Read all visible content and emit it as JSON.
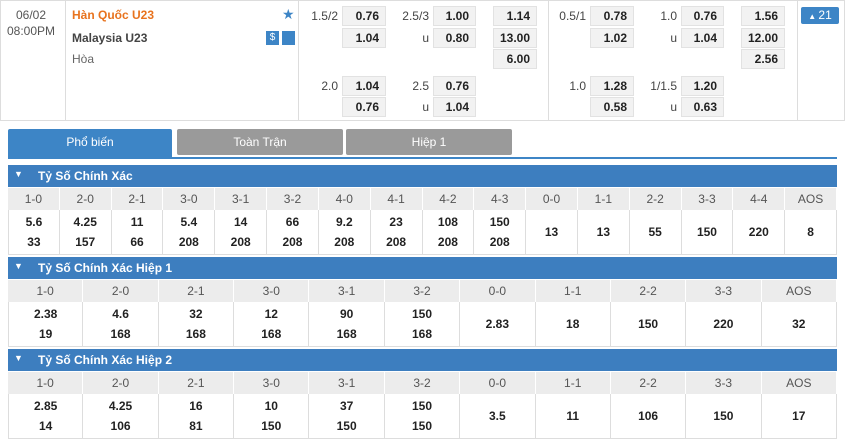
{
  "match": {
    "date": "06/02",
    "time": "08:00PM",
    "home": "Hàn Quốc U23",
    "away": "Malaysia U23",
    "draw": "Hòa",
    "more": "21",
    "blocks": [
      [
        [
          "1.5/2",
          "0.76",
          "2.5/3",
          "1.00",
          "1.14"
        ],
        [
          null,
          "1.04",
          "u",
          "0.80",
          "13.00"
        ],
        [
          null,
          null,
          null,
          null,
          "6.00"
        ],
        [
          "2.0",
          "1.04",
          "2.5",
          "0.76",
          null
        ],
        [
          null,
          "0.76",
          "u",
          "1.04",
          null
        ]
      ],
      [
        [
          "0.5/1",
          "0.78",
          "1.0",
          "0.76",
          "1.56"
        ],
        [
          null,
          "1.02",
          "u",
          "1.04",
          "12.00"
        ],
        [
          null,
          null,
          null,
          null,
          "2.56"
        ],
        [
          "1.0",
          "1.28",
          "1/1.5",
          "1.20",
          null
        ],
        [
          null,
          "0.58",
          "u",
          "0.63",
          null
        ]
      ]
    ]
  },
  "tabs": [
    "Phổ biến",
    "Toàn Trận",
    "Hiệp 1"
  ],
  "sections": [
    {
      "title": "Tỷ Số Chính Xác",
      "scores": [
        "1-0",
        "2-0",
        "2-1",
        "3-0",
        "3-1",
        "3-2",
        "4-0",
        "4-1",
        "4-2",
        "4-3",
        "0-0",
        "1-1",
        "2-2",
        "3-3",
        "4-4",
        "AOS"
      ],
      "odds": [
        [
          "5.6",
          "33"
        ],
        [
          "4.25",
          "157"
        ],
        [
          "11",
          "66"
        ],
        [
          "5.4",
          "208"
        ],
        [
          "14",
          "208"
        ],
        [
          "66",
          "208"
        ],
        [
          "9.2",
          "208"
        ],
        [
          "23",
          "208"
        ],
        [
          "108",
          "208"
        ],
        [
          "150",
          "208"
        ],
        [
          "13"
        ],
        [
          "13"
        ],
        [
          "55"
        ],
        [
          "150"
        ],
        [
          "220"
        ],
        [
          "8"
        ]
      ]
    },
    {
      "title": "Tỷ Số Chính Xác Hiệp 1",
      "scores": [
        "1-0",
        "2-0",
        "2-1",
        "3-0",
        "3-1",
        "3-2",
        "0-0",
        "1-1",
        "2-2",
        "3-3",
        "AOS"
      ],
      "odds": [
        [
          "2.38",
          "19"
        ],
        [
          "4.6",
          "168"
        ],
        [
          "32",
          "168"
        ],
        [
          "12",
          "168"
        ],
        [
          "90",
          "168"
        ],
        [
          "150",
          "168"
        ],
        [
          "2.83"
        ],
        [
          "18"
        ],
        [
          "150"
        ],
        [
          "220"
        ],
        [
          "32"
        ]
      ]
    },
    {
      "title": "Tỷ Số Chính Xác Hiệp 2",
      "scores": [
        "1-0",
        "2-0",
        "2-1",
        "3-0",
        "3-1",
        "3-2",
        "0-0",
        "1-1",
        "2-2",
        "3-3",
        "AOS"
      ],
      "odds": [
        [
          "2.85",
          "14"
        ],
        [
          "4.25",
          "106"
        ],
        [
          "16",
          "81"
        ],
        [
          "10",
          "150"
        ],
        [
          "37",
          "150"
        ],
        [
          "150",
          "150"
        ],
        [
          "3.5"
        ],
        [
          "11"
        ],
        [
          "106"
        ],
        [
          "150"
        ],
        [
          "17"
        ]
      ]
    }
  ]
}
